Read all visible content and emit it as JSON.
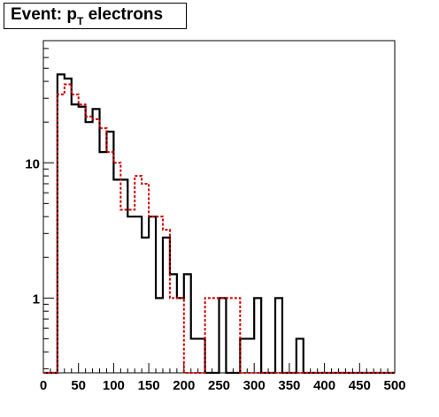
{
  "title": {
    "main": "Event: p",
    "subscript": "T",
    "suffix": " electrons"
  },
  "chart_data": {
    "type": "histogram",
    "title": "Event: p_T electrons",
    "xlabel": "",
    "ylabel": "",
    "xlim": [
      0,
      500
    ],
    "ylog": true,
    "ylim": [
      0.28,
      80
    ],
    "grid": false,
    "bin_width": 10,
    "x_ticks": [
      0,
      50,
      100,
      150,
      200,
      250,
      300,
      350,
      400,
      450,
      500
    ],
    "y_ticks": [
      1,
      10
    ],
    "series": [
      {
        "color": "#000000",
        "style": "solid",
        "bins_start": 0,
        "values": [
          0,
          0,
          45,
          42,
          27,
          26,
          20,
          25,
          12,
          17,
          7.5,
          7.5,
          4,
          4,
          2.8,
          4,
          1,
          2.8,
          1.5,
          1,
          1.5,
          0.5,
          0.5,
          0,
          0,
          1,
          0,
          0,
          0.5,
          0.5,
          1,
          0,
          0,
          1,
          0,
          0,
          0.5,
          0,
          0,
          0,
          0,
          0,
          0,
          0,
          0,
          0,
          0,
          0,
          0,
          0
        ]
      },
      {
        "color": "#cc0000",
        "style": "dotted",
        "bins_start": 0,
        "values": [
          0,
          0,
          32,
          38,
          32,
          27,
          22,
          21,
          18,
          12,
          10,
          4.5,
          4.5,
          8,
          7,
          4,
          4,
          3.2,
          1,
          1,
          0,
          0,
          0,
          1,
          1,
          1,
          1,
          1,
          0,
          0,
          0,
          0,
          0,
          0,
          0,
          0,
          0,
          0,
          0,
          0,
          0,
          0,
          0,
          0,
          0,
          0,
          0,
          0,
          0,
          0
        ]
      }
    ]
  }
}
